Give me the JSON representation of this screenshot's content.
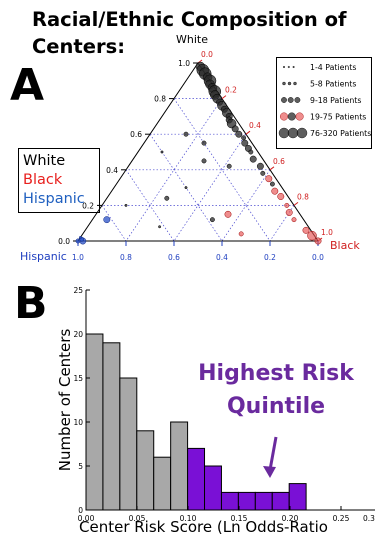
{
  "title": "Racial/Ethnic Composition of Centers:",
  "panels": {
    "a_label": "A",
    "b_label": "B"
  },
  "race_legend": {
    "white": {
      "label": "White",
      "color": "#000000"
    },
    "black": {
      "label": "Black",
      "color": "#e8201e"
    },
    "hispanic": {
      "label": "Hispanic",
      "color": "#2060c0"
    }
  },
  "size_legend": [
    {
      "label": "1-4 Patients"
    },
    {
      "label": "5-8 Patients"
    },
    {
      "label": "9-18 Patients"
    },
    {
      "label": "19-75 Patients"
    },
    {
      "label": "76-320 Patients"
    }
  ],
  "chart_data": [
    {
      "type": "scatter",
      "subtype": "ternary",
      "axes": {
        "white": {
          "label": "White",
          "ticks": [
            "0.0",
            "0.2",
            "0.4",
            "0.6",
            "0.8",
            "1.0"
          ]
        },
        "black": {
          "label": "Black",
          "ticks": [
            "0.0",
            "0.2",
            "0.4",
            "0.6",
            "0.8",
            "1.0"
          ]
        },
        "hispanic": {
          "label": "Hispanic",
          "ticks": [
            "1.0",
            "0.8",
            "0.6",
            "0.4",
            "0.2",
            "0.0"
          ]
        }
      },
      "grid": true,
      "legend_position": "top-right",
      "points": [
        {
          "white": 0.98,
          "black": 0.02,
          "hispanic": 0.0,
          "size": 4,
          "color": "black"
        },
        {
          "white": 0.96,
          "black": 0.04,
          "hispanic": 0.0,
          "size": 5,
          "color": "black"
        },
        {
          "white": 0.94,
          "black": 0.06,
          "hispanic": 0.0,
          "size": 5,
          "color": "black"
        },
        {
          "white": 0.92,
          "black": 0.08,
          "hispanic": 0.0,
          "size": 4,
          "color": "black"
        },
        {
          "white": 0.9,
          "black": 0.1,
          "hispanic": 0.0,
          "size": 5,
          "color": "black"
        },
        {
          "white": 0.88,
          "black": 0.11,
          "hispanic": 0.01,
          "size": 4,
          "color": "black"
        },
        {
          "white": 0.86,
          "black": 0.13,
          "hispanic": 0.01,
          "size": 4,
          "color": "black"
        },
        {
          "white": 0.84,
          "black": 0.15,
          "hispanic": 0.01,
          "size": 5,
          "color": "black"
        },
        {
          "white": 0.82,
          "black": 0.16,
          "hispanic": 0.02,
          "size": 4,
          "color": "black"
        },
        {
          "white": 0.8,
          "black": 0.18,
          "hispanic": 0.02,
          "size": 4,
          "color": "black"
        },
        {
          "white": 0.78,
          "black": 0.2,
          "hispanic": 0.02,
          "size": 3,
          "color": "black"
        },
        {
          "white": 0.76,
          "black": 0.22,
          "hispanic": 0.02,
          "size": 4,
          "color": "black"
        },
        {
          "white": 0.74,
          "black": 0.24,
          "hispanic": 0.02,
          "size": 3,
          "color": "black"
        },
        {
          "white": 0.72,
          "black": 0.26,
          "hispanic": 0.02,
          "size": 4,
          "color": "black"
        },
        {
          "white": 0.7,
          "black": 0.28,
          "hispanic": 0.02,
          "size": 3,
          "color": "black"
        },
        {
          "white": 0.68,
          "black": 0.29,
          "hispanic": 0.03,
          "size": 3,
          "color": "black"
        },
        {
          "white": 0.66,
          "black": 0.31,
          "hispanic": 0.03,
          "size": 4,
          "color": "black"
        },
        {
          "white": 0.63,
          "black": 0.34,
          "hispanic": 0.03,
          "size": 3,
          "color": "black"
        },
        {
          "white": 0.6,
          "black": 0.37,
          "hispanic": 0.03,
          "size": 3,
          "color": "black"
        },
        {
          "white": 0.58,
          "black": 0.4,
          "hispanic": 0.02,
          "size": 2,
          "color": "black"
        },
        {
          "white": 0.55,
          "black": 0.42,
          "hispanic": 0.03,
          "size": 3,
          "color": "black"
        },
        {
          "white": 0.52,
          "black": 0.45,
          "hispanic": 0.03,
          "size": 3,
          "color": "black"
        },
        {
          "white": 0.5,
          "black": 0.47,
          "hispanic": 0.03,
          "size": 2,
          "color": "black"
        },
        {
          "white": 0.46,
          "black": 0.5,
          "hispanic": 0.04,
          "size": 3,
          "color": "black"
        },
        {
          "white": 0.42,
          "black": 0.55,
          "hispanic": 0.03,
          "size": 3,
          "color": "black"
        },
        {
          "white": 0.38,
          "black": 0.58,
          "hispanic": 0.04,
          "size": 2,
          "color": "black"
        },
        {
          "white": 0.35,
          "black": 0.62,
          "hispanic": 0.03,
          "size": 3,
          "color": "red"
        },
        {
          "white": 0.32,
          "black": 0.65,
          "hispanic": 0.03,
          "size": 2,
          "color": "black"
        },
        {
          "white": 0.28,
          "black": 0.68,
          "hispanic": 0.04,
          "size": 3,
          "color": "red"
        },
        {
          "white": 0.25,
          "black": 0.72,
          "hispanic": 0.03,
          "size": 3,
          "color": "red"
        },
        {
          "white": 0.2,
          "black": 0.77,
          "hispanic": 0.03,
          "size": 2,
          "color": "red"
        },
        {
          "white": 0.16,
          "black": 0.8,
          "hispanic": 0.04,
          "size": 3,
          "color": "red"
        },
        {
          "white": 0.12,
          "black": 0.84,
          "hispanic": 0.04,
          "size": 2,
          "color": "red"
        },
        {
          "white": 0.06,
          "black": 0.92,
          "hispanic": 0.02,
          "size": 3,
          "color": "red"
        },
        {
          "white": 0.03,
          "black": 0.96,
          "hispanic": 0.01,
          "size": 4,
          "color": "red"
        },
        {
          "white": 0.6,
          "black": 0.15,
          "hispanic": 0.25,
          "size": 2,
          "color": "black"
        },
        {
          "white": 0.55,
          "black": 0.25,
          "hispanic": 0.2,
          "size": 2,
          "color": "black"
        },
        {
          "white": 0.5,
          "black": 0.1,
          "hispanic": 0.4,
          "size": 1,
          "color": "black"
        },
        {
          "white": 0.45,
          "black": 0.3,
          "hispanic": 0.25,
          "size": 2,
          "color": "black"
        },
        {
          "white": 0.42,
          "black": 0.42,
          "hispanic": 0.16,
          "size": 2,
          "color": "black"
        },
        {
          "white": 0.3,
          "black": 0.3,
          "hispanic": 0.4,
          "size": 1,
          "color": "black"
        },
        {
          "white": 0.24,
          "black": 0.25,
          "hispanic": 0.51,
          "size": 2,
          "color": "black"
        },
        {
          "white": 0.2,
          "black": 0.1,
          "hispanic": 0.7,
          "size": 1,
          "color": "black"
        },
        {
          "white": 0.15,
          "black": 0.55,
          "hispanic": 0.3,
          "size": 3,
          "color": "red"
        },
        {
          "white": 0.12,
          "black": 0.5,
          "hispanic": 0.38,
          "size": 2,
          "color": "black"
        },
        {
          "white": 0.08,
          "black": 0.3,
          "hispanic": 0.62,
          "size": 1,
          "color": "black"
        },
        {
          "white": 0.04,
          "black": 0.66,
          "hispanic": 0.3,
          "size": 2,
          "color": "red"
        },
        {
          "white": 0.12,
          "black": 0.06,
          "hispanic": 0.82,
          "size": 3,
          "color": "blue"
        },
        {
          "white": 0.0,
          "black": 0.02,
          "hispanic": 0.98,
          "size": 3,
          "color": "blue"
        },
        {
          "white": 0.01,
          "black": 0.01,
          "hispanic": 0.98,
          "size": 2,
          "color": "blue"
        },
        {
          "white": 0.0,
          "black": 0.0,
          "hispanic": 1.0,
          "size": 2,
          "color": "blue"
        },
        {
          "white": 0.02,
          "black": 0.0,
          "hispanic": 0.98,
          "size": 1,
          "color": "blue"
        },
        {
          "white": 0.0,
          "black": 1.0,
          "hispanic": 0.0,
          "size": 3,
          "color": "red"
        }
      ]
    },
    {
      "type": "bar",
      "subtype": "histogram",
      "xlabel": "Center Risk Score (Ln Odds-Ratio",
      "ylabel": "Number of Centers",
      "xlim": [
        0.0,
        0.3
      ],
      "ylim": [
        0,
        25
      ],
      "xticks": [
        "0.00",
        "0.05",
        "0.10",
        "0.15",
        "0.20",
        "0.25",
        "0.30",
        "0.3"
      ],
      "yticks": [
        "0",
        "5",
        "10",
        "15",
        "20",
        "25"
      ],
      "bin_width": 0.0166,
      "bins": [
        {
          "start": 0.0,
          "count": 20,
          "highlight": false
        },
        {
          "start": 0.0166,
          "count": 19,
          "highlight": false
        },
        {
          "start": 0.0332,
          "count": 15,
          "highlight": false
        },
        {
          "start": 0.0498,
          "count": 9,
          "highlight": false
        },
        {
          "start": 0.0664,
          "count": 6,
          "highlight": false
        },
        {
          "start": 0.083,
          "count": 10,
          "highlight": false
        },
        {
          "start": 0.0996,
          "count": 7,
          "highlight": true
        },
        {
          "start": 0.1162,
          "count": 5,
          "highlight": true
        },
        {
          "start": 0.1328,
          "count": 2,
          "highlight": true
        },
        {
          "start": 0.1494,
          "count": 2,
          "highlight": true
        },
        {
          "start": 0.166,
          "count": 2,
          "highlight": true
        },
        {
          "start": 0.1826,
          "count": 2,
          "highlight": true
        },
        {
          "start": 0.1992,
          "count": 3,
          "highlight": true
        }
      ],
      "annotation": "Highest Risk Quintile",
      "colors": {
        "normal": "#a8a8a8",
        "highlight": "#7a10d6",
        "annotation": "#6a2a9e"
      }
    }
  ]
}
